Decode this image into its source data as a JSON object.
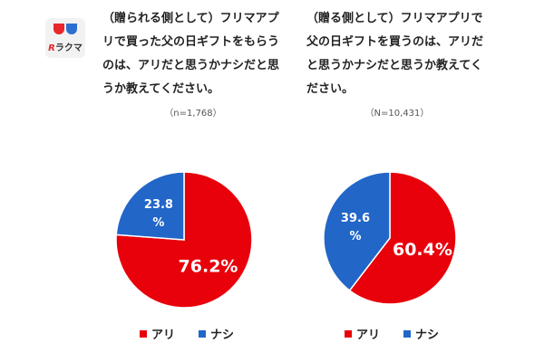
{
  "logo": {
    "brand_r": "R",
    "brand_text": "ラクマ"
  },
  "colors": {
    "ari": "#e8000b",
    "nashi": "#2266c8"
  },
  "chart_data": [
    {
      "type": "pie",
      "title": "（贈られる側として）フリマアプリで買った父の日ギフトをもらうのは、アリだと思うかナシだと思うか教えてください。",
      "subtitle": "（n=1,768）",
      "categories": [
        "アリ",
        "ナシ"
      ],
      "values": [
        76.2,
        23.8
      ],
      "data_labels": [
        "76.2%",
        "23.8\n%"
      ],
      "legend": "bottom"
    },
    {
      "type": "pie",
      "title": "（贈る側として）フリマアプリで父の日ギフトを買うのは、アリだと思うかナシだと思うか教えてください。",
      "subtitle": "（N=10,431）",
      "categories": [
        "アリ",
        "ナシ"
      ],
      "values": [
        60.4,
        39.6
      ],
      "data_labels": [
        "60.4%",
        "39.6\n%"
      ],
      "legend": "bottom"
    }
  ]
}
